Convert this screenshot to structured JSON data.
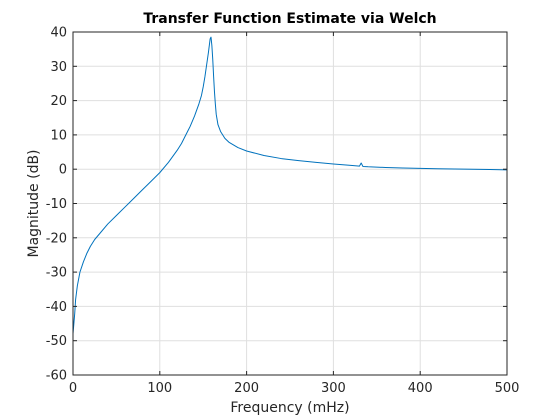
{
  "chart_data": {
    "type": "line",
    "title": "Transfer Function Estimate via Welch",
    "xlabel": "Frequency (mHz)",
    "ylabel": "Magnitude (dB)",
    "xlim": [
      0,
      500
    ],
    "ylim": [
      -60,
      40
    ],
    "xticks": [
      0,
      100,
      200,
      300,
      400,
      500
    ],
    "yticks": [
      -60,
      -50,
      -40,
      -30,
      -20,
      -10,
      0,
      10,
      20,
      30,
      40
    ],
    "grid": true,
    "line_color": "#0072bd",
    "series": [
      {
        "x": [
          0,
          1,
          2,
          3,
          5,
          8,
          12,
          16,
          20,
          25,
          30,
          40,
          50,
          60,
          70,
          80,
          90,
          100,
          110,
          120,
          125,
          130,
          135,
          140,
          145,
          148,
          150,
          152,
          154,
          156,
          157,
          158,
          159,
          160,
          161,
          162,
          163,
          164,
          165,
          167,
          170,
          175,
          180,
          190,
          200,
          220,
          240,
          260,
          280,
          300,
          320,
          330,
          332,
          334,
          340,
          360,
          380,
          400,
          420,
          440,
          460,
          480,
          500
        ],
        "y": [
          -48,
          -45,
          -42,
          -38,
          -34,
          -30,
          -27,
          -24.5,
          -22.5,
          -20.5,
          -19,
          -16,
          -13.5,
          -11,
          -8.5,
          -6,
          -3.5,
          -1,
          2,
          5.5,
          7.5,
          10,
          12.5,
          15.5,
          19,
          21.5,
          24,
          27,
          30.5,
          34,
          36,
          38,
          38.5,
          36,
          32,
          27,
          22.5,
          19,
          16,
          13,
          11,
          9,
          7.8,
          6.3,
          5.3,
          4,
          3.1,
          2.5,
          2,
          1.5,
          1.1,
          0.9,
          1.8,
          0.8,
          0.7,
          0.5,
          0.35,
          0.25,
          0.15,
          0.05,
          0,
          -0.1,
          -0.2
        ]
      }
    ]
  }
}
